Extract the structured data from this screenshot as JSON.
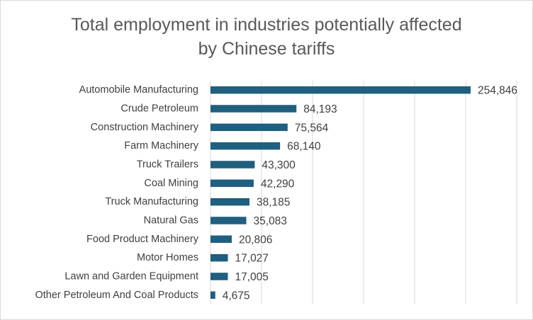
{
  "chart_data": {
    "type": "bar",
    "orientation": "horizontal",
    "title_lines": [
      "Total employment in industries potentially affected",
      "by Chinese tariffs"
    ],
    "categories": [
      "Automobile Manufacturing",
      "Crude Petroleum",
      "Construction Machinery",
      "Farm Machinery",
      "Truck Trailers",
      "Coal Mining",
      "Truck Manufacturing",
      "Natural Gas",
      "Food Product Machinery",
      "Motor Homes",
      "Lawn and Garden Equipment",
      "Other Petroleum And Coal Products"
    ],
    "values": [
      254846,
      84193,
      75564,
      68140,
      43300,
      42290,
      38185,
      35083,
      20806,
      17027,
      17005,
      4675
    ],
    "value_labels": [
      "254,846",
      "84,193",
      "75,564",
      "68,140",
      "43,300",
      "42,290",
      "38,185",
      "35,083",
      "20,806",
      "17,027",
      "17,005",
      "4,675"
    ],
    "xlim": [
      0,
      300000
    ],
    "gridlines": true,
    "legend": "none",
    "bar_color": "#1f5f7f"
  }
}
